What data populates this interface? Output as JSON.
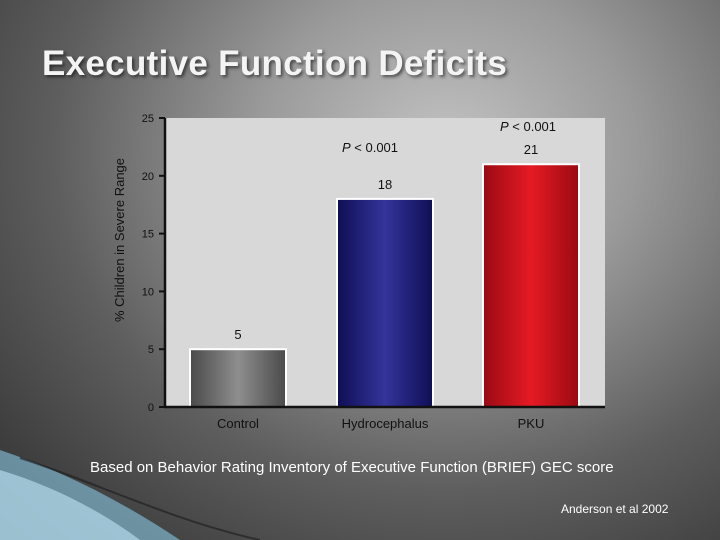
{
  "slide": {
    "title": "Executive Function Deficits",
    "caption": "Based on Behavior Rating Inventory of Executive Function (BRIEF) GEC score",
    "citation": "Anderson et al 2002"
  },
  "chart_data": {
    "type": "bar",
    "categories": [
      "Control",
      "Hydrocephalus",
      "PKU"
    ],
    "values": [
      5,
      18,
      21
    ],
    "data_labels": [
      "5",
      "18",
      "21"
    ],
    "ylabel": "% Children in Severe Range",
    "ylim": [
      0,
      25
    ],
    "yticks": [
      0,
      5,
      10,
      15,
      20,
      25
    ],
    "grid": false,
    "colors": [
      "#7f7f7f",
      "#24247f",
      "#c8141e"
    ],
    "annotations": [
      {
        "text": "P < 0.001",
        "category": "Hydrocephalus"
      },
      {
        "text": "P < 0.001",
        "category": "PKU"
      }
    ]
  }
}
